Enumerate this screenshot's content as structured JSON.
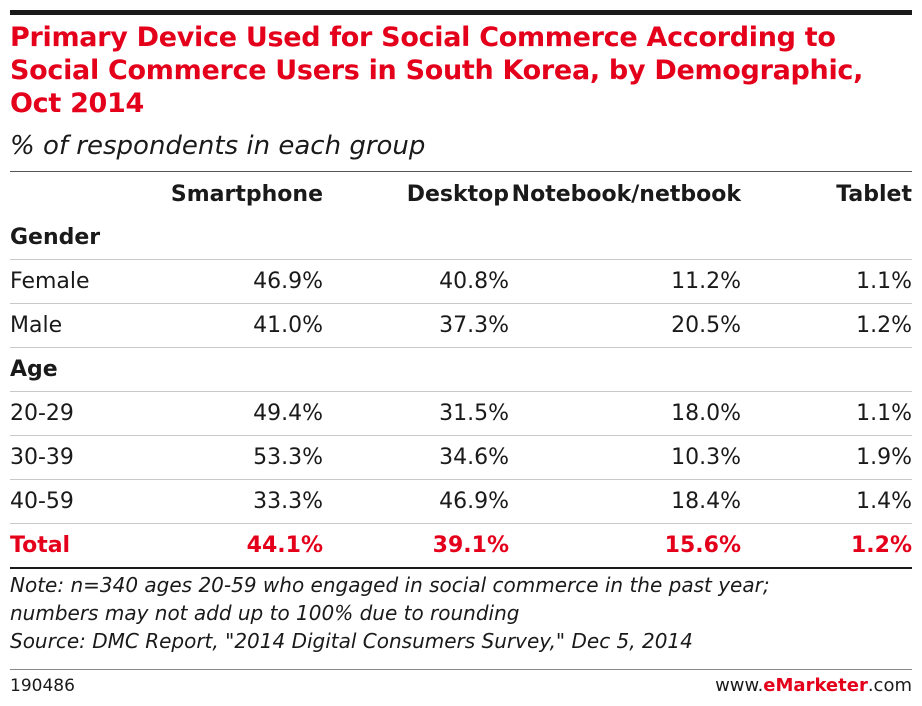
{
  "chart_data": {
    "type": "table",
    "title": "Primary Device Used for Social Commerce According to Social Commerce Users in South Korea, by Demographic, Oct 2014",
    "subtitle": "% of respondents in each group",
    "columns": [
      "Smartphone",
      "Desktop",
      "Notebook/netbook",
      "Tablet"
    ],
    "groups": [
      {
        "label": "Gender",
        "rows": [
          {
            "label": "Female",
            "values": [
              "46.9%",
              "40.8%",
              "11.2%",
              "1.1%"
            ]
          },
          {
            "label": "Male",
            "values": [
              "41.0%",
              "37.3%",
              "20.5%",
              "1.2%"
            ]
          }
        ]
      },
      {
        "label": "Age",
        "rows": [
          {
            "label": "20-29",
            "values": [
              "49.4%",
              "31.5%",
              "18.0%",
              "1.1%"
            ]
          },
          {
            "label": "30-39",
            "values": [
              "53.3%",
              "34.6%",
              "10.3%",
              "1.9%"
            ]
          },
          {
            "label": "40-59",
            "values": [
              "33.3%",
              "46.9%",
              "18.4%",
              "1.4%"
            ]
          }
        ]
      }
    ],
    "total": {
      "label": "Total",
      "values": [
        "44.1%",
        "39.1%",
        "15.6%",
        "1.2%"
      ]
    },
    "note_lines": [
      "Note: n=340 ages 20-59 who engaged in social commerce in the past year;",
      "numbers may not add up to 100% due to rounding",
      "Source: DMC Report, \"2014 Digital Consumers Survey,\" Dec 5, 2014"
    ],
    "chart_id": "190486"
  },
  "brand": {
    "prefix": "www.",
    "name": "eMarketer",
    "suffix": ".com"
  },
  "colors": {
    "accent": "#e4001b",
    "text": "#1a1a1a",
    "rule": "#c8c8c8"
  }
}
